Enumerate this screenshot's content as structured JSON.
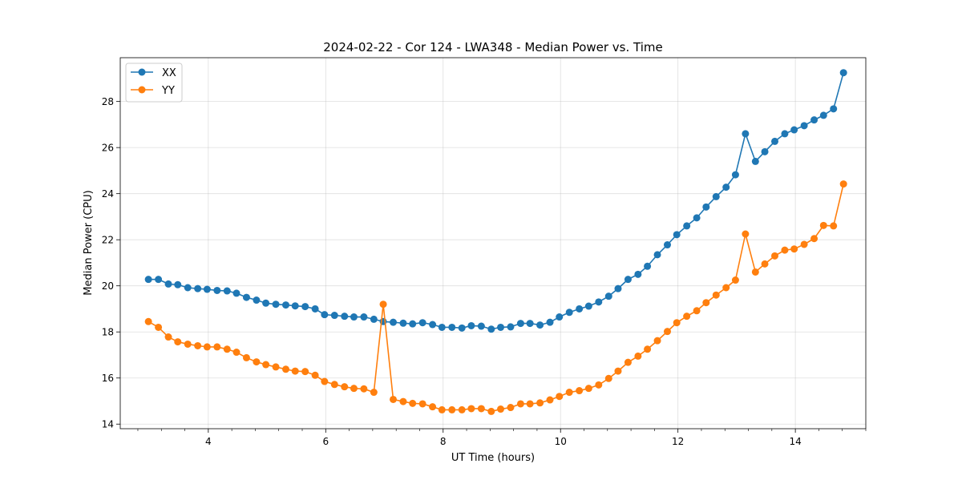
{
  "chart_data": {
    "type": "line",
    "title": "2024-02-22 - Cor 124 - LWA348 - Median Power vs. Time",
    "xlabel": "UT Time (hours)",
    "ylabel": "Median Power (CPU)",
    "xlim": [
      2.5,
      15.2
    ],
    "ylim": [
      13.8,
      29.9
    ],
    "xticks": [
      4,
      6,
      8,
      10,
      12,
      14
    ],
    "yticks": [
      14,
      16,
      18,
      20,
      22,
      24,
      26,
      28
    ],
    "xtick_labels": [
      "4",
      "6",
      "8",
      "10",
      "12",
      "14"
    ],
    "ytick_labels": [
      "14",
      "16",
      "18",
      "20",
      "22",
      "24",
      "26",
      "28"
    ],
    "grid": true,
    "legend_position": "upper-left",
    "x": [
      2.98,
      3.15,
      3.32,
      3.48,
      3.65,
      3.82,
      3.98,
      4.15,
      4.32,
      4.48,
      4.65,
      4.82,
      4.98,
      5.15,
      5.32,
      5.48,
      5.65,
      5.82,
      5.98,
      6.15,
      6.32,
      6.48,
      6.65,
      6.82,
      6.98,
      7.15,
      7.32,
      7.48,
      7.65,
      7.82,
      7.98,
      8.15,
      8.32,
      8.48,
      8.65,
      8.82,
      8.98,
      9.15,
      9.32,
      9.48,
      9.65,
      9.82,
      9.98,
      10.15,
      10.32,
      10.48,
      10.65,
      10.82,
      10.98,
      11.15,
      11.32,
      11.48,
      11.65,
      11.82,
      11.98,
      12.15,
      12.32,
      12.48,
      12.65,
      12.82,
      12.98,
      13.15,
      13.32,
      13.48,
      13.65,
      13.82,
      13.98,
      14.15,
      14.32,
      14.48,
      14.65,
      14.82
    ],
    "series": [
      {
        "name": "XX",
        "color": "#1f77b4",
        "values": [
          20.28,
          20.28,
          20.08,
          20.05,
          19.92,
          19.88,
          19.85,
          19.8,
          19.78,
          19.68,
          19.5,
          19.38,
          19.25,
          19.2,
          19.17,
          19.13,
          19.1,
          19.0,
          18.75,
          18.72,
          18.68,
          18.65,
          18.65,
          18.55,
          18.45,
          18.42,
          18.38,
          18.35,
          18.4,
          18.32,
          18.2,
          18.2,
          18.17,
          18.27,
          18.25,
          18.12,
          18.2,
          18.22,
          18.37,
          18.37,
          18.3,
          18.42,
          18.65,
          18.85,
          19.0,
          19.12,
          19.3,
          19.55,
          19.88,
          20.28,
          20.5,
          20.85,
          21.35,
          21.78,
          22.22,
          22.6,
          22.95,
          23.42,
          23.87,
          24.28,
          24.82,
          26.6,
          25.4,
          25.82,
          26.27,
          26.6,
          26.77,
          26.95,
          27.2,
          27.4,
          27.68,
          29.25
        ]
      },
      {
        "name": "YY",
        "color": "#ff7f0e",
        "values": [
          18.45,
          18.2,
          17.78,
          17.57,
          17.47,
          17.4,
          17.35,
          17.35,
          17.25,
          17.12,
          16.88,
          16.7,
          16.58,
          16.48,
          16.38,
          16.3,
          16.28,
          16.12,
          15.85,
          15.72,
          15.62,
          15.55,
          15.53,
          15.38,
          19.2,
          15.07,
          14.98,
          14.9,
          14.88,
          14.75,
          14.62,
          14.62,
          14.62,
          14.67,
          14.67,
          14.55,
          14.65,
          14.72,
          14.88,
          14.88,
          14.92,
          15.05,
          15.2,
          15.38,
          15.45,
          15.55,
          15.7,
          15.98,
          16.3,
          16.68,
          16.95,
          17.25,
          17.62,
          18.02,
          18.4,
          18.68,
          18.92,
          19.27,
          19.6,
          19.92,
          20.25,
          22.25,
          20.6,
          20.95,
          21.3,
          21.55,
          21.6,
          21.8,
          22.05,
          22.62,
          22.6,
          24.42
        ]
      }
    ]
  }
}
